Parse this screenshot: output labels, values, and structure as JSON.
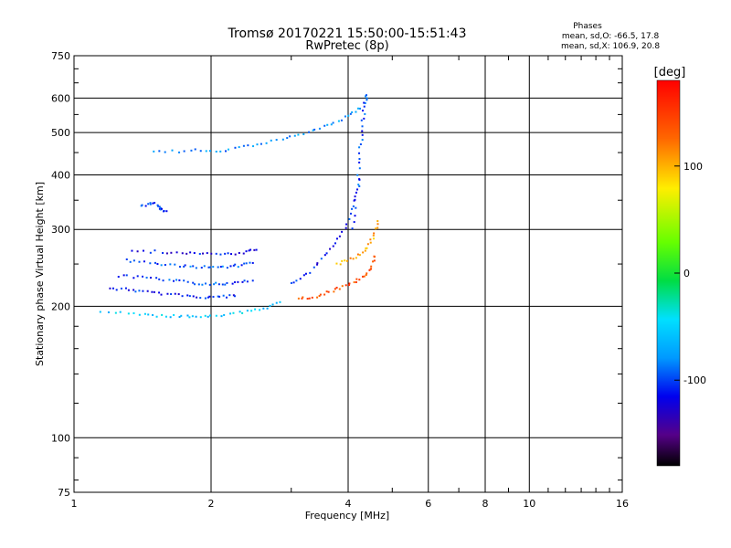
{
  "chart_data": {
    "type": "scatter",
    "title": "Tromsø 20170221 15:50:00-15:51:43",
    "subtitle": "RwPretec (8p)",
    "xlabel": "Frequency [MHz]",
    "ylabel": "Stationary phase Virtual Height [km]",
    "x_scale": "log",
    "y_scale": "log",
    "xlim": [
      1,
      16
    ],
    "ylim": [
      75,
      750
    ],
    "x_ticks": [
      1,
      2,
      4,
      6,
      8,
      10,
      16
    ],
    "y_ticks": [
      75,
      100,
      200,
      300,
      400,
      500,
      600,
      750
    ],
    "grid": true,
    "stats": {
      "title": "Phases",
      "line1": "mean, sd,O: -66.5, 17.8",
      "line2": "mean, sd,X: 106.9, 20.8"
    },
    "colorbar": {
      "label": "[deg]",
      "range": [
        -180,
        180
      ],
      "ticks": [
        100,
        0,
        -100
      ]
    },
    "traces": [
      {
        "x": [
          1.2,
          1.35,
          1.5,
          1.7,
          1.9,
          2.1,
          2.3
        ],
        "y": [
          220,
          218,
          215,
          212,
          210,
          210,
          212
        ],
        "phase": -110
      },
      {
        "x": [
          1.25,
          1.45,
          1.65,
          1.85,
          2.05,
          2.25,
          2.5
        ],
        "y": [
          235,
          232,
          229,
          226,
          225,
          226,
          230
        ],
        "phase": -100
      },
      {
        "x": [
          1.3,
          1.5,
          1.7,
          1.9,
          2.1,
          2.3,
          2.5
        ],
        "y": [
          255,
          250,
          248,
          246,
          246,
          248,
          252
        ],
        "phase": -95
      },
      {
        "x": [
          1.35,
          1.6,
          1.85,
          2.1,
          2.35,
          2.55
        ],
        "y": [
          268,
          266,
          264,
          263,
          265,
          270
        ],
        "phase": -115
      },
      {
        "x": [
          1.15,
          1.4,
          1.6,
          1.8,
          2.0,
          2.3,
          2.6,
          2.9
        ],
        "y": [
          195,
          192,
          190,
          189,
          190,
          193,
          198,
          205
        ],
        "phase": -55
      },
      {
        "x": [
          1.5,
          1.8,
          2.1,
          2.4,
          2.8,
          3.2,
          3.6,
          4.0,
          4.3
        ],
        "y": [
          450,
          455,
          455,
          465,
          480,
          495,
          520,
          545,
          575
        ],
        "phase": -80
      },
      {
        "x": [
          3.0,
          3.3,
          3.6,
          3.9,
          4.1,
          4.3
        ],
        "y": [
          225,
          240,
          265,
          295,
          340,
          400
        ],
        "phase": -110
      },
      {
        "x": [
          4.1,
          4.2,
          4.25,
          4.3,
          4.35,
          4.4
        ],
        "y": [
          300,
          380,
          450,
          520,
          580,
          620
        ],
        "phase": -100
      },
      {
        "x": [
          3.1,
          3.4,
          3.7,
          4.0,
          4.3,
          4.5,
          4.6
        ],
        "y": [
          207,
          211,
          217,
          224,
          233,
          245,
          265
        ],
        "phase": 140
      },
      {
        "x": [
          3.8,
          4.1,
          4.4,
          4.55,
          4.7
        ],
        "y": [
          250,
          258,
          270,
          290,
          320
        ],
        "phase": 105
      },
      {
        "x": [
          1.4,
          1.5,
          1.55,
          1.6
        ],
        "y": [
          340,
          345,
          335,
          330
        ],
        "phase": -100
      }
    ]
  }
}
